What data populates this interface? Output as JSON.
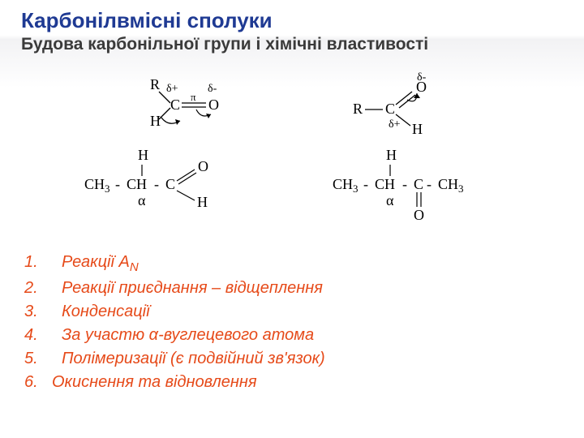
{
  "colors": {
    "title": "#1f3a93",
    "subtitle": "#3a3a3a",
    "list_text": "#e64a19",
    "list_num": "#e64a19",
    "chem_line": "#000000",
    "background": "#ffffff"
  },
  "title": "Карбонілвмісні сполуки",
  "subtitle": "Будова карбонільної групи і хімічні властивості",
  "diagram_labels": {
    "R": "R",
    "C": "C",
    "O": "O",
    "H": "H",
    "pi": "π",
    "delta_plus": "δ+",
    "delta_minus": "δ-",
    "alpha": "α",
    "CH3": "CH",
    "sub3": "3",
    "CH": "CH"
  },
  "left_structure_text": {
    "line": "CH₃ - CH - C",
    "branch_top": "H",
    "aldehyde_O": "O",
    "aldehyde_H": "H"
  },
  "right_structure_text": {
    "line": "CH₃ - CH - C - CH₃",
    "branch_top": "H",
    "ketone_O": "O"
  },
  "reactions": [
    {
      "num": "1.",
      "text_pre": "Реакції A",
      "text_sub": "N",
      "text_post": ""
    },
    {
      "num": "2.",
      "text_pre": "Реакції приєднання – відщеплення",
      "text_sub": "",
      "text_post": ""
    },
    {
      "num": "3.",
      "text_pre": "Конденсації",
      "text_sub": "",
      "text_post": ""
    },
    {
      "num": "4.",
      "text_pre": "За участю α-вуглецевого атома",
      "text_sub": "",
      "text_post": ""
    },
    {
      "num": "5.",
      "text_pre": "Полімеризації (є подвійний зв'язок)",
      "text_sub": "",
      "text_post": ""
    },
    {
      "num": "6.",
      "text_pre": "Окиснення та відновлення",
      "text_sub": "",
      "text_post": "",
      "tight": true
    }
  ]
}
